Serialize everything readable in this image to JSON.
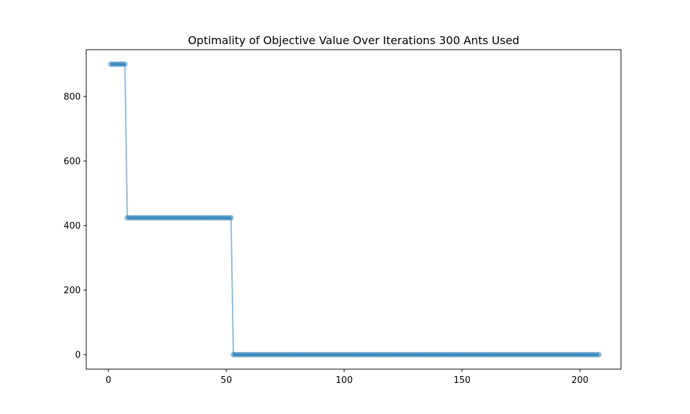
{
  "chart_data": {
    "type": "line",
    "title": "Optimality of Objective Value Over Iterations 300 Ants Used",
    "xlabel": "",
    "ylabel": "",
    "xlim": [
      -9.4,
      217.4
    ],
    "ylim": [
      -45,
      945
    ],
    "xticks": [
      0,
      50,
      100,
      150,
      200
    ],
    "yticks": [
      0,
      200,
      400,
      600,
      800
    ],
    "grid": false,
    "legend": "none",
    "colors": {
      "series": "#1f77b4"
    },
    "marker": "circle",
    "alpha": 0.5,
    "segments": [
      {
        "x_start": 1,
        "x_end": 7,
        "y": 900
      },
      {
        "x_start": 8,
        "x_end": 52,
        "y": 424
      },
      {
        "x_start": 53,
        "x_end": 208,
        "y": 0
      }
    ]
  }
}
